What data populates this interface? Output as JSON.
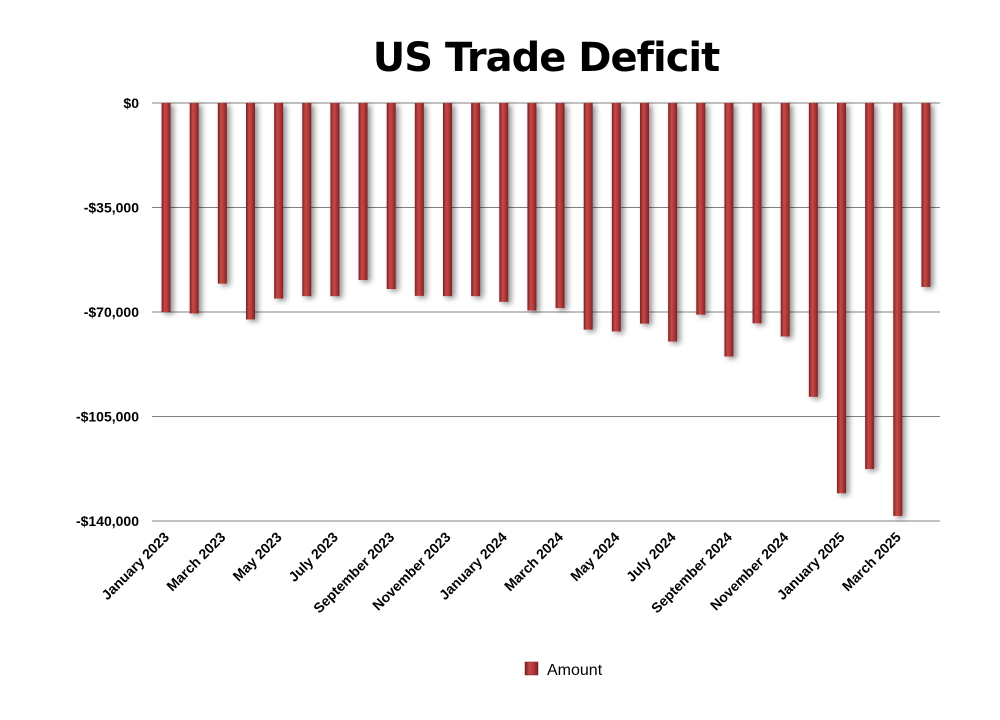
{
  "chart_data": {
    "type": "bar",
    "title": "US Trade Deficit",
    "xlabel": "",
    "ylabel": "",
    "ylim": [
      -140000,
      0
    ],
    "yticks": [
      0,
      -35000,
      -70000,
      -105000,
      -140000
    ],
    "ytick_labels": [
      "$0",
      "-$35,000",
      "-$70,000",
      "-$105,000",
      "-$140,000"
    ],
    "categories": [
      "January 2023",
      "February 2023",
      "March 2023",
      "April 2023",
      "May 2023",
      "June 2023",
      "July 2023",
      "August 2023",
      "September 2023",
      "October 2023",
      "November 2023",
      "December 2023",
      "January 2024",
      "February 2024",
      "March 2024",
      "April 2024",
      "May 2024",
      "June 2024",
      "July 2024",
      "August 2024",
      "September 2024",
      "October 2024",
      "November 2024",
      "December 2024",
      "January 2025",
      "February 2025",
      "March 2025",
      "April 2025"
    ],
    "xtick_labels_shown": [
      "January 2023",
      "March 2023",
      "May 2023",
      "July 2023",
      "September 2023",
      "November 2023",
      "January 2024",
      "March 2024",
      "May 2024",
      "July 2024",
      "September 2024",
      "November 2024",
      "January 2025",
      "March 2025"
    ],
    "series": [
      {
        "name": "Amount",
        "color": "#b03535",
        "values": [
          -70000,
          -70500,
          -60500,
          -72500,
          -65500,
          -64700,
          -64700,
          -59300,
          -62300,
          -64600,
          -64700,
          -64700,
          -66600,
          -69500,
          -68700,
          -75900,
          -76500,
          -73900,
          -79900,
          -70900,
          -84900,
          -73800,
          -78200,
          -98400,
          -130700,
          -122600,
          -138300,
          -61600
        ]
      }
    ],
    "legend": {
      "position": "bottom",
      "label": "Amount"
    },
    "grid": true
  }
}
